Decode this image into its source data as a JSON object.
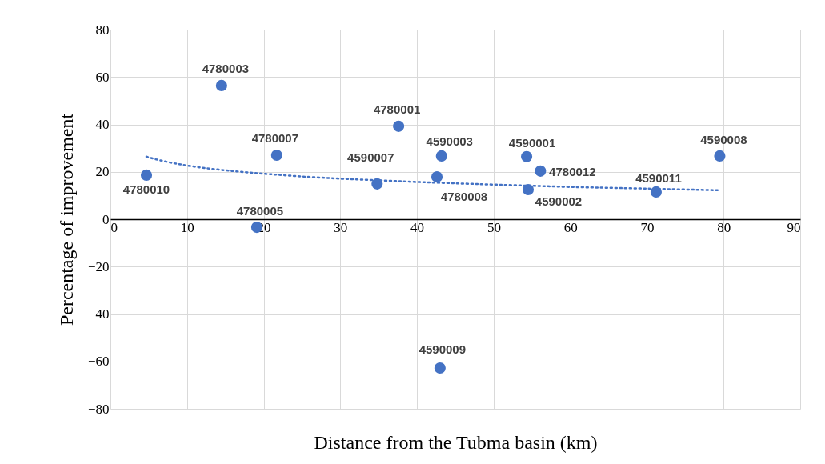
{
  "chart_data": {
    "type": "scatter",
    "xlabel": "Distance from the Tubma basin (km)",
    "ylabel": "Percentage of improvement",
    "xlim": [
      0,
      90
    ],
    "xticks": [
      0,
      10,
      20,
      30,
      40,
      50,
      60,
      70,
      80,
      90
    ],
    "ylim": [
      -80,
      80
    ],
    "yticks": [
      -80,
      -60,
      -40,
      -20,
      0,
      20,
      40,
      60,
      80
    ],
    "grid": true,
    "series": [
      {
        "color": "#4472c4",
        "marker": "circle",
        "x": [
          4.7,
          14.5,
          19.1,
          21.7,
          34.8,
          37.6,
          42.6,
          43.2,
          43.0,
          54.3,
          54.5,
          56.1,
          71.2,
          79.5
        ],
        "values": [
          18.6,
          56.4,
          -3.4,
          27,
          14.9,
          39.2,
          17.9,
          26.7,
          -62.8,
          26.4,
          12.5,
          20.3,
          11.5,
          26.7
        ]
      },
      {
        "type": "line",
        "line_style": "dotted",
        "marker": "none",
        "color": "#4472c4",
        "x": [
          4.7,
          6,
          8,
          10,
          13,
          16,
          20,
          25,
          30,
          40,
          50,
          60,
          70,
          79.5
        ],
        "values": [
          26.4,
          25.2,
          23.8,
          22.6,
          21.3,
          20.3,
          19.2,
          18.0,
          17.1,
          15.7,
          14.6,
          13.6,
          12.9,
          12.2
        ]
      }
    ],
    "annotations": [
      {
        "text": "4780010",
        "x": 4.7,
        "y": 18.6
      },
      {
        "text": "4780003",
        "x": 14.5,
        "y": 56.4
      },
      {
        "text": "4780005",
        "x": 19.1,
        "y": -3.4
      },
      {
        "text": "4780007",
        "x": 21.7,
        "y": 27
      },
      {
        "text": "4590007",
        "x": 34.8,
        "y": 14.9
      },
      {
        "text": "4780001",
        "x": 37.6,
        "y": 39.2
      },
      {
        "text": "4780008",
        "x": 42.6,
        "y": 17.9
      },
      {
        "text": "4590003",
        "x": 43.2,
        "y": 26.7
      },
      {
        "text": "4590009",
        "x": 43.0,
        "y": -62.8
      },
      {
        "text": "4590001",
        "x": 54.3,
        "y": 26.4
      },
      {
        "text": "4590002",
        "x": 54.5,
        "y": 12.5
      },
      {
        "text": "4780012",
        "x": 56.1,
        "y": 20.3
      },
      {
        "text": "4590011",
        "x": 71.2,
        "y": 11.5
      },
      {
        "text": "4590008",
        "x": 79.5,
        "y": 26.7
      }
    ]
  }
}
